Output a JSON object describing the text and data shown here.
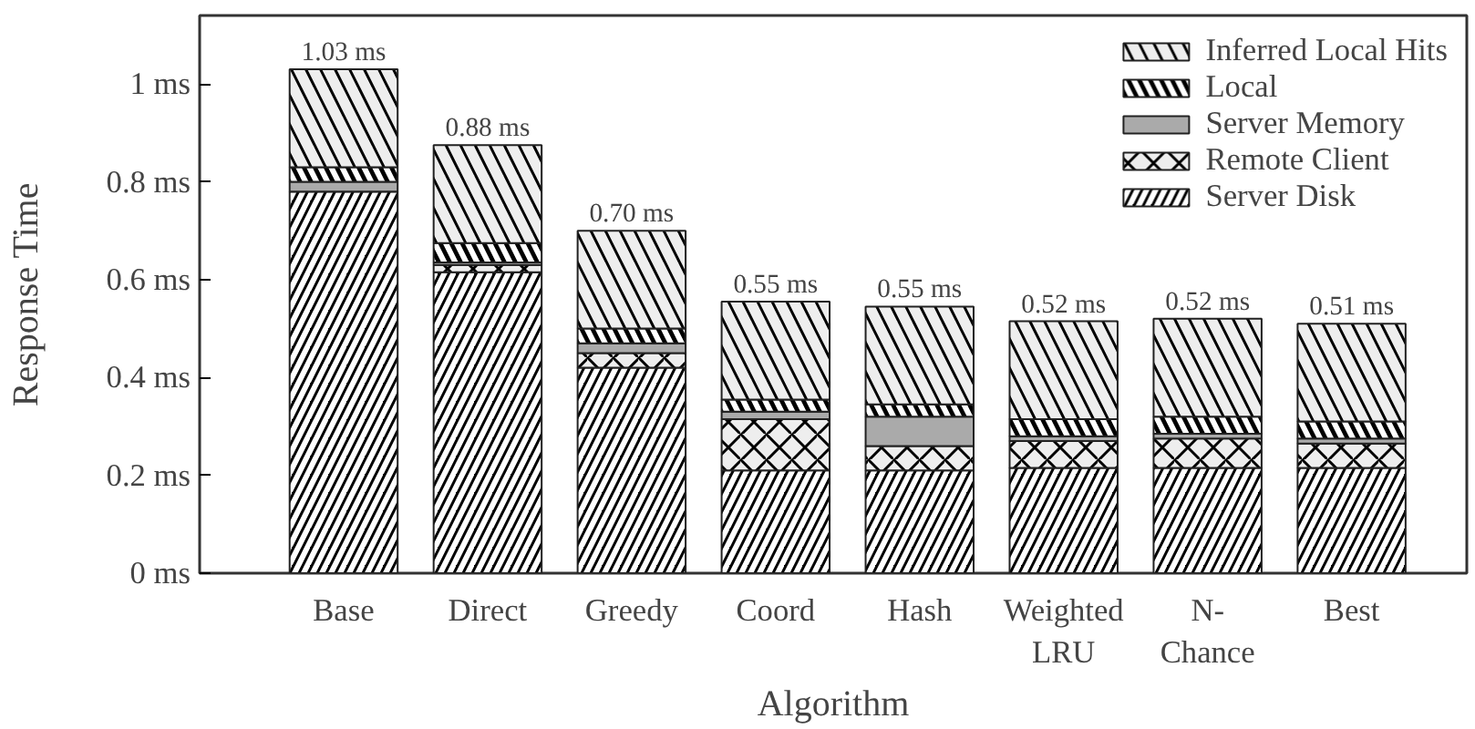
{
  "chart_data": {
    "type": "bar",
    "stacked": true,
    "xlabel": "Algorithm",
    "ylabel": "Response Time",
    "categories": [
      "Base",
      "Direct",
      "Greedy",
      "Coord",
      "Hash",
      "Weighted\nLRU",
      "N-\nChance",
      "Best"
    ],
    "series": [
      {
        "name": "Server Disk",
        "color": "#000000",
        "values": [
          0.78,
          0.615,
          0.42,
          0.21,
          0.21,
          0.215,
          0.215,
          0.215
        ]
      },
      {
        "name": "Remote Client",
        "color": "#eeeeee",
        "values": [
          0,
          0.015,
          0.03,
          0.105,
          0.05,
          0.055,
          0.06,
          0.05
        ]
      },
      {
        "name": "Server Memory",
        "color": "#aaaaaa",
        "values": [
          0.02,
          0.005,
          0.02,
          0.015,
          0.06,
          0.01,
          0.01,
          0.01
        ]
      },
      {
        "name": "Local",
        "color": "#000000",
        "values": [
          0.03,
          0.04,
          0.03,
          0.025,
          0.025,
          0.035,
          0.035,
          0.035
        ]
      },
      {
        "name": "Inferred Local Hits",
        "color": "#eeeeee",
        "values": [
          0.2,
          0.2,
          0.2,
          0.2,
          0.2,
          0.2,
          0.2,
          0.2
        ]
      }
    ],
    "totals": [
      "1.03 ms",
      "0.88 ms",
      "0.70 ms",
      "0.55 ms",
      "0.55 ms",
      "0.52 ms",
      "0.52 ms",
      "0.51 ms"
    ],
    "ylim": [
      0,
      1.14
    ],
    "yticks": [
      {
        "value": 0,
        "label": "0 ms"
      },
      {
        "value": 0.2,
        "label": "0.2 ms"
      },
      {
        "value": 0.4,
        "label": "0.4 ms"
      },
      {
        "value": 0.6,
        "label": "0.6 ms"
      },
      {
        "value": 0.8,
        "label": "0.8 ms"
      },
      {
        "value": 1,
        "label": "1 ms"
      }
    ],
    "grid": false,
    "legend": "top right"
  }
}
